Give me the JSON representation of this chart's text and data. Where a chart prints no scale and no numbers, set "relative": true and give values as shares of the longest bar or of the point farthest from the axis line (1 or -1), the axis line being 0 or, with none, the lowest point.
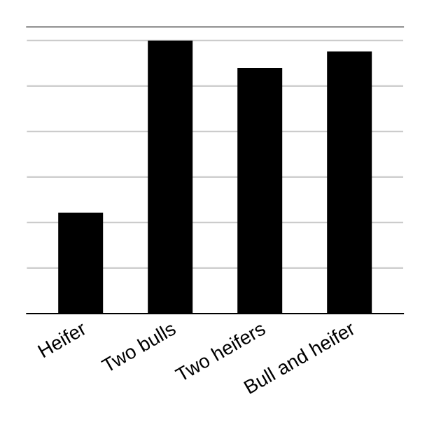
{
  "chart_data": {
    "type": "bar",
    "relative": true,
    "categories": [
      "Heifer",
      "Two bulls",
      "Two heifers",
      "Bull and heifer"
    ],
    "values": [
      0.37,
      1,
      0.9,
      0.96
    ],
    "color": "#000000",
    "grid": "y"
  }
}
